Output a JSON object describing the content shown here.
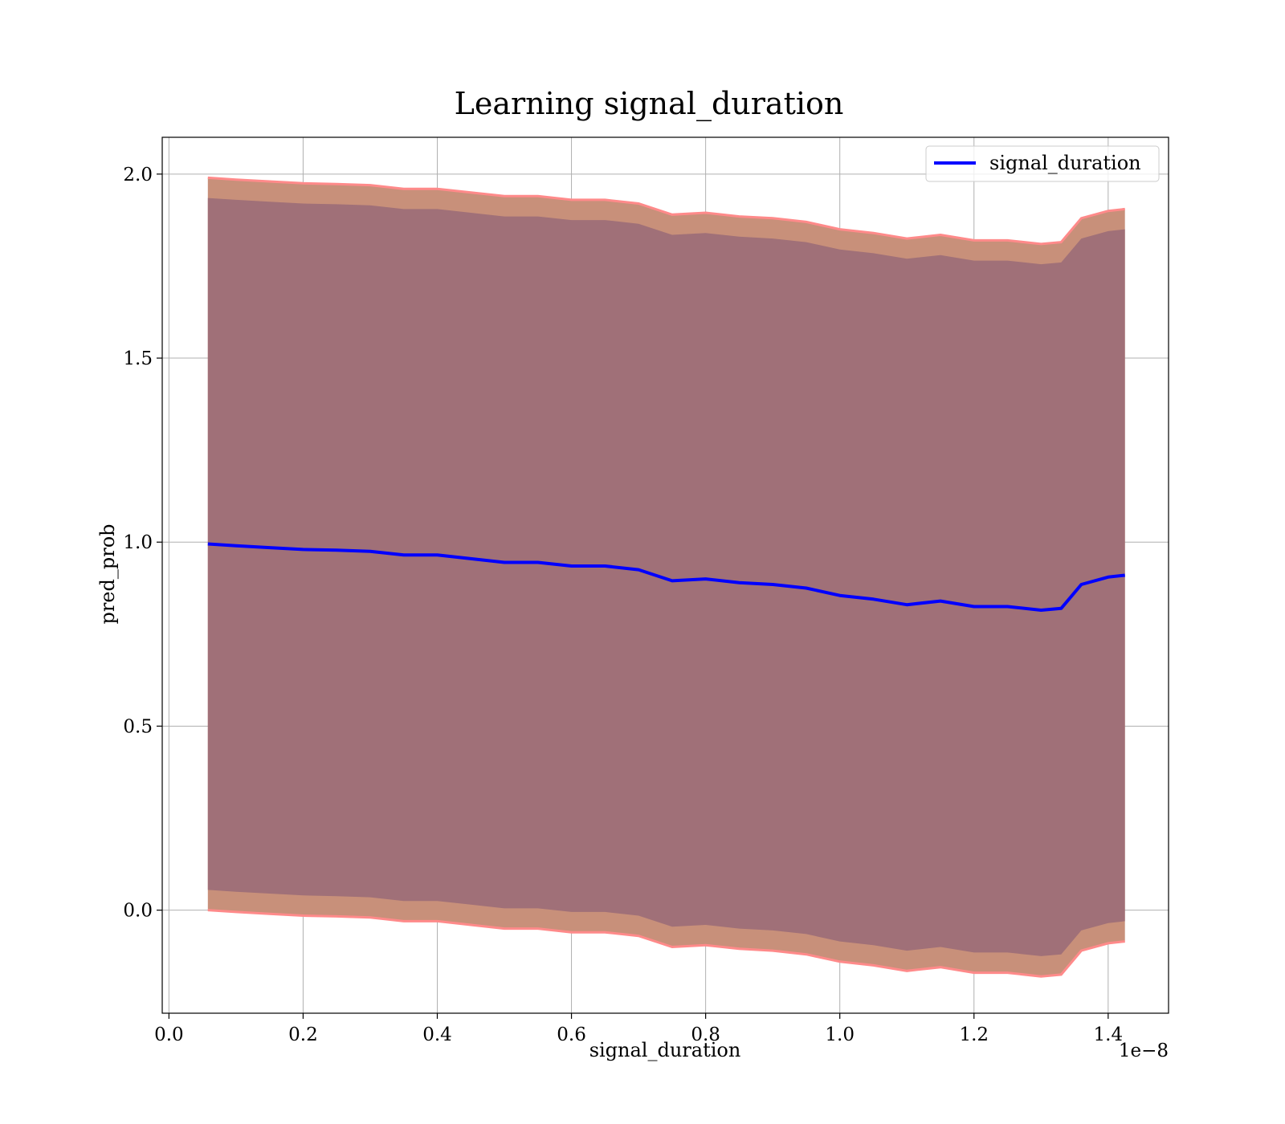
{
  "chart_data": {
    "type": "line",
    "title": "Learning signal_duration",
    "xlabel": "signal_duration",
    "ylabel": "pred_prob",
    "x_offset_label": "1e−8",
    "xlim": [
      -0.01,
      1.49
    ],
    "ylim": [
      -0.28,
      2.1
    ],
    "x_ticks": [
      0.0,
      0.2,
      0.4,
      0.6,
      0.8,
      1.0,
      1.2,
      1.4
    ],
    "x_tick_labels": [
      "0.0",
      "0.2",
      "0.4",
      "0.6",
      "0.8",
      "1.0",
      "1.2",
      "1.4"
    ],
    "y_ticks": [
      0.0,
      0.5,
      1.0,
      1.5,
      2.0
    ],
    "y_tick_labels": [
      "0.0",
      "0.5",
      "1.0",
      "1.5",
      "2.0"
    ],
    "grid": true,
    "legend_position": "top-right",
    "colors": {
      "line": "#0000ff",
      "band_inner": "#a07078",
      "band_outer": "#c8907a",
      "band_edge": "#ff8a8a",
      "grid": "#b0b0b0"
    },
    "series": [
      {
        "name": "signal_duration",
        "x": [
          0.058,
          0.1,
          0.15,
          0.2,
          0.25,
          0.3,
          0.35,
          0.4,
          0.45,
          0.5,
          0.55,
          0.6,
          0.65,
          0.7,
          0.75,
          0.8,
          0.85,
          0.9,
          0.95,
          1.0,
          1.05,
          1.1,
          1.15,
          1.2,
          1.25,
          1.3,
          1.33,
          1.36,
          1.4,
          1.425
        ],
        "y": [
          0.995,
          0.99,
          0.985,
          0.98,
          0.978,
          0.975,
          0.965,
          0.965,
          0.955,
          0.945,
          0.945,
          0.935,
          0.935,
          0.925,
          0.895,
          0.9,
          0.89,
          0.885,
          0.875,
          0.855,
          0.845,
          0.83,
          0.84,
          0.825,
          0.825,
          0.815,
          0.82,
          0.885,
          0.905,
          0.91
        ],
        "inner_upper": [
          1.935,
          1.93,
          1.925,
          1.92,
          1.918,
          1.915,
          1.905,
          1.905,
          1.895,
          1.885,
          1.885,
          1.875,
          1.875,
          1.865,
          1.835,
          1.84,
          1.83,
          1.825,
          1.815,
          1.795,
          1.785,
          1.77,
          1.78,
          1.765,
          1.765,
          1.755,
          1.76,
          1.825,
          1.845,
          1.85
        ],
        "inner_lower": [
          0.055,
          0.05,
          0.045,
          0.04,
          0.038,
          0.035,
          0.025,
          0.025,
          0.015,
          0.005,
          0.005,
          -0.005,
          -0.005,
          -0.015,
          -0.045,
          -0.04,
          -0.05,
          -0.055,
          -0.065,
          -0.085,
          -0.095,
          -0.11,
          -0.1,
          -0.115,
          -0.115,
          -0.125,
          -0.12,
          -0.055,
          -0.035,
          -0.03
        ],
        "outer_upper": [
          1.99,
          1.985,
          1.98,
          1.975,
          1.973,
          1.97,
          1.96,
          1.96,
          1.95,
          1.94,
          1.94,
          1.93,
          1.93,
          1.92,
          1.89,
          1.895,
          1.885,
          1.88,
          1.87,
          1.85,
          1.84,
          1.825,
          1.835,
          1.82,
          1.82,
          1.81,
          1.815,
          1.88,
          1.9,
          1.905
        ],
        "outer_lower": [
          0.0,
          -0.005,
          -0.01,
          -0.015,
          -0.017,
          -0.02,
          -0.03,
          -0.03,
          -0.04,
          -0.05,
          -0.05,
          -0.06,
          -0.06,
          -0.07,
          -0.1,
          -0.095,
          -0.105,
          -0.11,
          -0.12,
          -0.14,
          -0.15,
          -0.165,
          -0.155,
          -0.17,
          -0.17,
          -0.18,
          -0.175,
          -0.11,
          -0.09,
          -0.085
        ]
      }
    ]
  }
}
